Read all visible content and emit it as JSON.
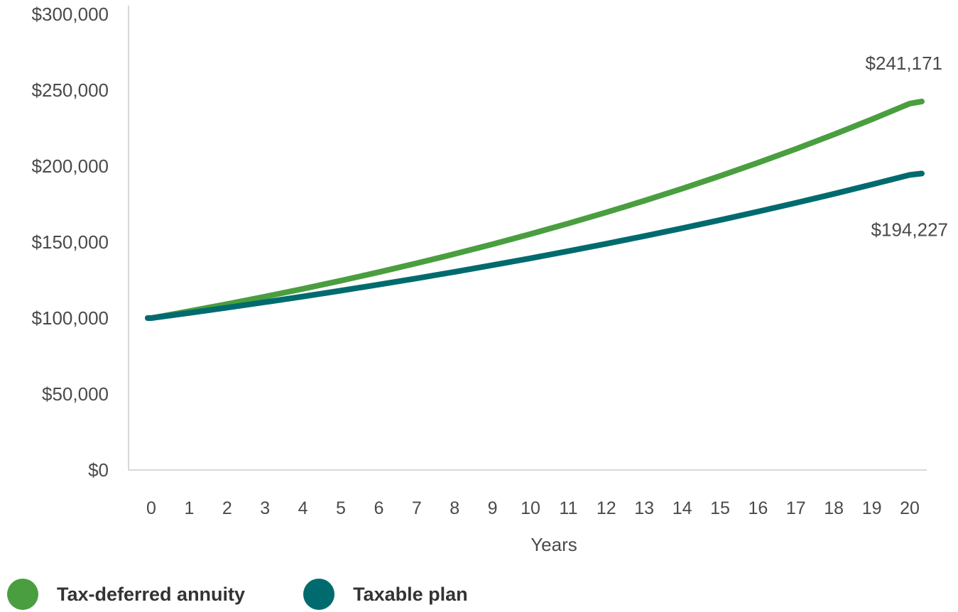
{
  "chart_data": {
    "type": "line",
    "title": "",
    "xlabel": "Years",
    "ylabel": "",
    "x": [
      0,
      1,
      2,
      3,
      4,
      5,
      6,
      7,
      8,
      9,
      10,
      11,
      12,
      13,
      14,
      15,
      16,
      17,
      18,
      19,
      20
    ],
    "xtick_labels": [
      "0",
      "1",
      "2",
      "3",
      "4",
      "5",
      "6",
      "7",
      "8",
      "9",
      "10",
      "11",
      "12",
      "13",
      "14",
      "15",
      "16",
      "17",
      "18",
      "19",
      "20"
    ],
    "ylim": [
      0,
      300000
    ],
    "yticks": [
      0,
      50000,
      100000,
      150000,
      200000,
      250000,
      300000
    ],
    "ytick_labels": [
      "$0",
      "$50,000",
      "$100,000",
      "$150,000",
      "$200,000",
      "$250,000",
      "$300,000"
    ],
    "grid": false,
    "legend_position": "bottom-left",
    "series": [
      {
        "name": "Tax-deferred annuity",
        "color": "#4a9e3f",
        "values": [
          100000,
          104500,
          109203,
          114117,
          119252,
          124618,
          130226,
          136086,
          142210,
          148610,
          155297,
          162285,
          169588,
          177220,
          185195,
          193528,
          202237,
          211338,
          220849,
          230787,
          241171
        ],
        "end_label": "$241,171"
      },
      {
        "name": "Taxable plan",
        "color": "#006b6e",
        "values": [
          100000,
          103375,
          106864,
          110471,
          114199,
          118053,
          122038,
          126157,
          130415,
          134816,
          139366,
          144070,
          148932,
          153959,
          159155,
          164526,
          170079,
          175819,
          181753,
          187888,
          194227
        ],
        "end_label": "$194,227"
      }
    ]
  }
}
